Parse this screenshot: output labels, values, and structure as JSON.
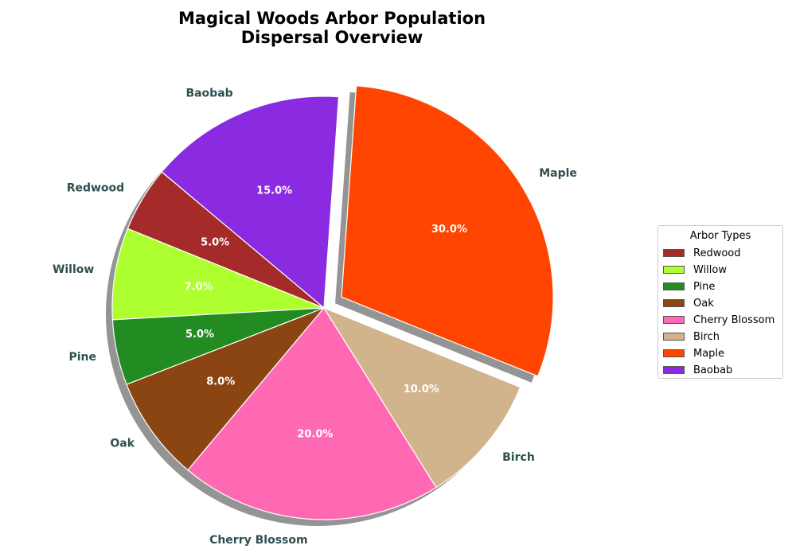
{
  "chart_data": {
    "type": "pie",
    "title_lines": [
      "Magical Woods Arbor Population",
      "Dispersal Overview"
    ],
    "legend_title": "Arbor Types",
    "legend_placement": "center-right",
    "slices": [
      {
        "label": "Redwood",
        "value": 5.0,
        "pct_label": "5.0%",
        "color": "#a52a2a",
        "exploded": false
      },
      {
        "label": "Willow",
        "value": 7.0,
        "pct_label": "7.0%",
        "color": "#adff2f",
        "exploded": false
      },
      {
        "label": "Pine",
        "value": 5.0,
        "pct_label": "5.0%",
        "color": "#228b22",
        "exploded": false
      },
      {
        "label": "Oak",
        "value": 8.0,
        "pct_label": "8.0%",
        "color": "#8b4513",
        "exploded": false
      },
      {
        "label": "Cherry Blossom",
        "value": 20.0,
        "pct_label": "20.0%",
        "color": "#ff69b4",
        "exploded": false
      },
      {
        "label": "Birch",
        "value": 10.0,
        "pct_label": "10.0%",
        "color": "#d2b48c",
        "exploded": false
      },
      {
        "label": "Maple",
        "value": 30.0,
        "pct_label": "30.0%",
        "color": "#ff4500",
        "exploded": true
      },
      {
        "label": "Baobab",
        "value": 15.0,
        "pct_label": "15.0%",
        "color": "#8a2be2",
        "exploded": false
      }
    ]
  }
}
